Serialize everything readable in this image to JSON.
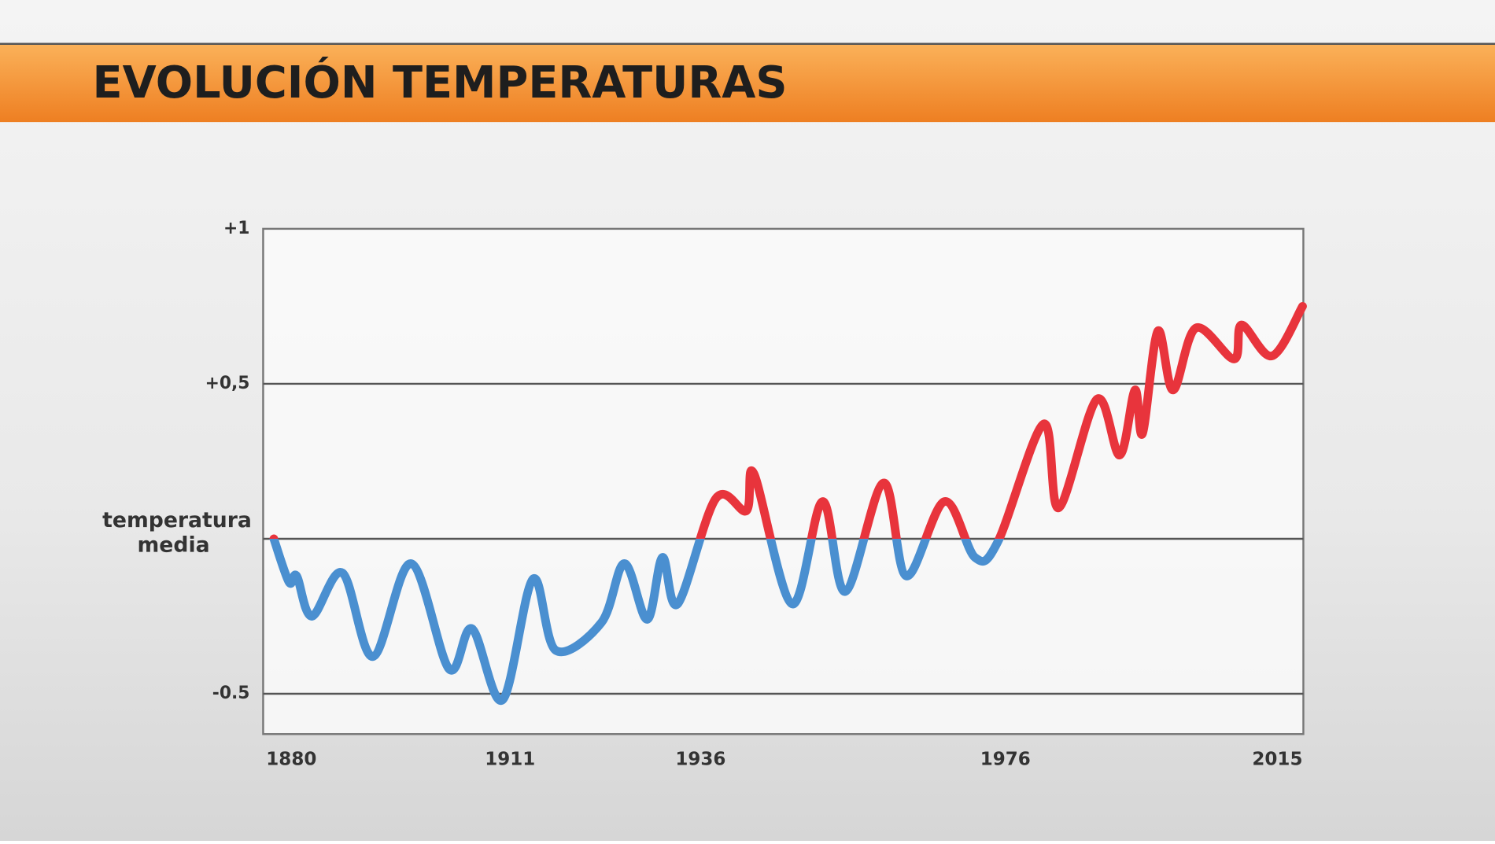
{
  "chart_data": {
    "type": "line",
    "title": "EVOLUCIÓN TEMPERATURAS",
    "x": [
      1880,
      1882,
      1883,
      1885,
      1889,
      1893,
      1898,
      1903,
      1906,
      1910,
      1914,
      1917,
      1923,
      1926,
      1929,
      1931,
      1933,
      1938,
      1942,
      1943,
      1948,
      1952,
      1955,
      1960,
      1963,
      1968,
      1972,
      1975,
      1981,
      1983,
      1988,
      1991,
      1993,
      1994,
      1996,
      1998,
      2001,
      2006,
      2007,
      2011,
      2015
    ],
    "series": [
      {
        "values": [
          0,
          -0.14,
          -0.12,
          -0.25,
          -0.11,
          -0.38,
          -0.08,
          -0.42,
          -0.29,
          -0.52,
          -0.13,
          -0.36,
          -0.27,
          -0.08,
          -0.26,
          -0.06,
          -0.21,
          0.13,
          0.09,
          0.21,
          -0.21,
          0.12,
          -0.17,
          0.18,
          -0.12,
          0.12,
          -0.06,
          -0.01,
          0.37,
          0.1,
          0.45,
          0.27,
          0.48,
          0.34,
          0.67,
          0.48,
          0.68,
          0.58,
          0.69,
          0.59,
          0.75
        ],
        "color_below": "#4a8fd0",
        "color_above": "#e8343c"
      }
    ],
    "xlim": [
      1878.6,
      2015.1
    ],
    "xticks": [
      1880,
      1911,
      1936,
      1976,
      2015
    ],
    "ylim": [
      -0.63,
      1
    ],
    "yticks": [
      {
        "value": -0.5,
        "label": "-0.5"
      },
      {
        "value": 0,
        "label": "temperatura media"
      },
      {
        "value": 0.5,
        "label": "+0,5"
      },
      {
        "value": 1,
        "label": "+1"
      }
    ],
    "grid": true
  }
}
